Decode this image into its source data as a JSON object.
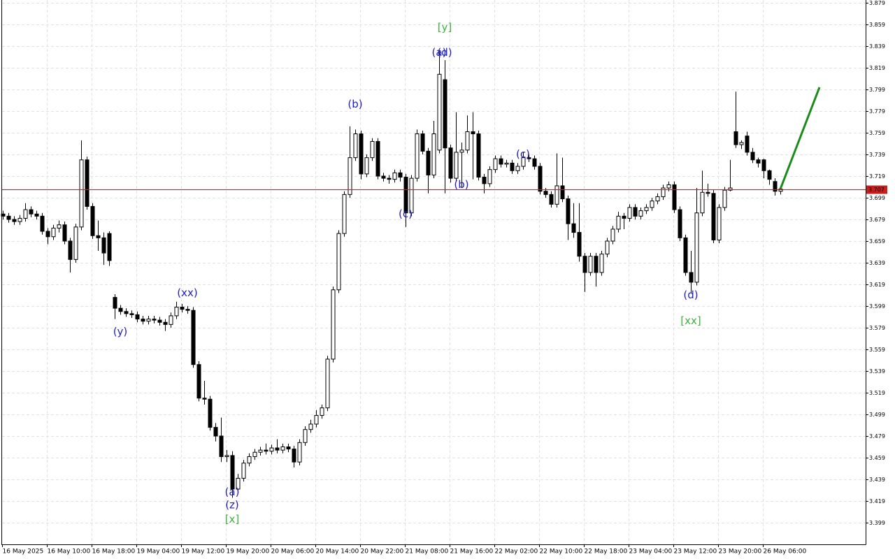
{
  "chart_data": {
    "type": "candlestick",
    "categories": [
      "16 May 2025",
      null,
      null,
      null,
      null,
      null,
      null,
      null,
      "16 May 10:00",
      null,
      null,
      null,
      null,
      null,
      null,
      null,
      "16 May 18:00",
      null,
      null,
      null,
      null,
      null,
      null,
      null,
      "19 May 04:00",
      null,
      null,
      null,
      null,
      null,
      null,
      null,
      "19 May 12:00",
      null,
      null,
      null,
      null,
      null,
      null,
      null,
      "19 May 20:00",
      null,
      null,
      null,
      null,
      null,
      null,
      null,
      "20 May 06:00",
      null,
      null,
      null,
      null,
      null,
      null,
      null,
      "20 May 14:00",
      null,
      null,
      null,
      null,
      null,
      null,
      null,
      "20 May 22:00",
      null,
      null,
      null,
      null,
      null,
      null,
      null,
      "21 May 08:00",
      null,
      null,
      null,
      null,
      null,
      null,
      null,
      "21 May 16:00",
      null,
      null,
      null,
      null,
      null,
      null,
      null,
      "22 May 02:00",
      null,
      null,
      null,
      null,
      null,
      null,
      null,
      "22 May 10:00",
      null,
      null,
      null,
      null,
      null,
      null,
      null,
      "22 May 18:00",
      null,
      null,
      null,
      null,
      null,
      null,
      null,
      "23 May 04:00",
      null,
      null,
      null,
      null,
      null,
      null,
      null,
      "23 May 12:00",
      null,
      null,
      null,
      null,
      null,
      null,
      null,
      "23 May 20:00",
      null,
      null,
      null,
      null,
      null,
      null,
      null,
      "26 May 06:00",
      null,
      null,
      null
    ],
    "open": [
      3.684,
      3.682,
      3.679,
      3.677,
      3.68,
      3.688,
      3.684,
      3.682,
      3.668,
      3.663,
      3.671,
      3.674,
      3.659,
      3.642,
      3.672,
      3.734,
      3.691,
      3.664,
      3.662,
      3.666,
      3.607,
      3.597,
      3.594,
      3.592,
      3.591,
      3.587,
      3.585,
      3.587,
      3.586,
      3.584,
      3.582,
      3.59,
      3.598,
      3.596,
      3.595,
      3.545,
      3.514,
      3.513,
      3.487,
      3.479,
      3.46,
      3.461,
      3.43,
      3.44,
      3.454,
      3.46,
      3.464,
      3.466,
      3.465,
      3.468,
      3.466,
      3.469,
      3.467,
      3.455,
      3.473,
      3.485,
      3.49,
      3.498,
      3.505,
      3.55,
      3.614,
      3.666,
      3.702,
      3.736,
      3.758,
      3.721,
      3.736,
      3.751,
      3.719,
      3.717,
      3.716,
      3.722,
      3.718,
      3.685,
      3.717,
      3.758,
      3.742,
      3.72,
      3.743,
      3.808,
      3.745,
      3.717,
      3.741,
      3.743,
      3.76,
      3.758,
      3.718,
      3.712,
      3.725,
      3.735,
      3.73,
      3.731,
      3.724,
      3.728,
      3.736,
      3.735,
      3.728,
      3.705,
      3.702,
      3.693,
      3.71,
      3.698,
      3.675,
      3.667,
      3.645,
      3.63,
      3.645,
      3.63,
      3.647,
      3.659,
      3.67,
      3.682,
      3.68,
      3.69,
      3.682,
      3.687,
      3.69,
      3.696,
      3.7,
      3.708,
      3.711,
      3.688,
      3.662,
      3.63,
      3.621,
      3.685,
      3.704,
      3.703,
      3.66,
      3.69,
      3.706,
      3.76,
      3.748,
      3.756,
      3.741,
      3.734,
      3.734,
      3.724,
      3.714,
      3.705
    ],
    "high": [
      3.687,
      3.685,
      3.682,
      3.683,
      3.694,
      3.691,
      3.687,
      3.685,
      3.671,
      3.674,
      3.678,
      3.677,
      3.662,
      3.675,
      3.752,
      3.737,
      3.694,
      3.678,
      3.667,
      3.668,
      3.61,
      3.6,
      3.597,
      3.595,
      3.594,
      3.59,
      3.59,
      3.59,
      3.589,
      3.587,
      3.593,
      3.603,
      3.601,
      3.599,
      3.598,
      3.548,
      3.53,
      3.516,
      3.491,
      3.496,
      3.466,
      3.465,
      3.444,
      3.457,
      3.463,
      3.467,
      3.469,
      3.472,
      3.471,
      3.476,
      3.472,
      3.472,
      3.47,
      3.476,
      3.488,
      3.494,
      3.503,
      3.508,
      3.553,
      3.617,
      3.669,
      3.705,
      3.765,
      3.762,
      3.761,
      3.739,
      3.754,
      3.754,
      3.722,
      3.72,
      3.725,
      3.725,
      3.721,
      3.72,
      3.762,
      3.761,
      3.745,
      3.77,
      3.835,
      3.826,
      3.748,
      3.778,
      3.75,
      3.775,
      3.778,
      3.761,
      3.721,
      3.728,
      3.738,
      3.738,
      3.734,
      3.734,
      3.731,
      3.741,
      3.739,
      3.738,
      3.731,
      3.708,
      3.705,
      3.74,
      3.736,
      3.701,
      3.694,
      3.694,
      3.648,
      3.648,
      3.648,
      3.65,
      3.662,
      3.673,
      3.686,
      3.685,
      3.693,
      3.693,
      3.69,
      3.693,
      3.699,
      3.703,
      3.711,
      3.714,
      3.714,
      3.691,
      3.665,
      3.65,
      3.708,
      3.724,
      3.712,
      3.706,
      3.693,
      3.709,
      3.734,
      3.797,
      3.752,
      3.76,
      3.745,
      3.736,
      3.735,
      3.725,
      3.717,
      3.709
    ],
    "low": [
      3.679,
      3.676,
      3.674,
      3.674,
      3.677,
      3.681,
      3.679,
      3.665,
      3.656,
      3.66,
      3.667,
      3.656,
      3.63,
      3.639,
      3.669,
      3.688,
      3.661,
      3.65,
      3.637,
      3.636,
      3.587,
      3.591,
      3.589,
      3.588,
      3.584,
      3.582,
      3.582,
      3.583,
      3.581,
      3.576,
      3.579,
      3.587,
      3.593,
      3.592,
      3.542,
      3.511,
      3.508,
      3.484,
      3.474,
      3.455,
      3.455,
      3.422,
      3.427,
      3.437,
      3.451,
      3.457,
      3.461,
      3.462,
      3.462,
      3.463,
      3.463,
      3.464,
      3.45,
      3.452,
      3.47,
      3.482,
      3.487,
      3.495,
      3.502,
      3.547,
      3.611,
      3.663,
      3.699,
      3.733,
      3.716,
      3.718,
      3.733,
      3.716,
      3.714,
      3.712,
      3.713,
      3.714,
      3.672,
      3.682,
      3.714,
      3.739,
      3.703,
      3.717,
      3.74,
      3.703,
      3.713,
      3.714,
      3.708,
      3.74,
      3.716,
      3.715,
      3.703,
      3.709,
      3.722,
      3.727,
      3.727,
      3.721,
      3.721,
      3.725,
      3.732,
      3.725,
      3.702,
      3.699,
      3.69,
      3.69,
      3.695,
      3.66,
      3.662,
      3.64,
      3.612,
      3.627,
      3.617,
      3.627,
      3.644,
      3.656,
      3.667,
      3.67,
      3.677,
      3.679,
      3.679,
      3.684,
      3.687,
      3.693,
      3.697,
      3.705,
      3.685,
      3.659,
      3.627,
      3.611,
      3.618,
      3.682,
      3.7,
      3.657,
      3.657,
      3.687,
      3.705,
      3.745,
      3.744,
      3.738,
      3.731,
      3.727,
      3.717,
      3.711,
      3.701,
      3.702
    ],
    "close": [
      3.682,
      3.679,
      3.677,
      3.68,
      3.688,
      3.684,
      3.682,
      3.668,
      3.663,
      3.671,
      3.674,
      3.659,
      3.642,
      3.672,
      3.734,
      3.691,
      3.664,
      3.662,
      3.648,
      3.641,
      3.597,
      3.594,
      3.592,
      3.591,
      3.587,
      3.585,
      3.587,
      3.586,
      3.584,
      3.582,
      3.59,
      3.598,
      3.596,
      3.595,
      3.545,
      3.514,
      3.513,
      3.487,
      3.479,
      3.46,
      3.461,
      3.43,
      3.44,
      3.454,
      3.46,
      3.464,
      3.466,
      3.465,
      3.468,
      3.466,
      3.469,
      3.467,
      3.455,
      3.473,
      3.485,
      3.49,
      3.498,
      3.505,
      3.55,
      3.614,
      3.666,
      3.702,
      3.736,
      3.758,
      3.721,
      3.736,
      3.751,
      3.719,
      3.717,
      3.716,
      3.722,
      3.718,
      3.685,
      3.717,
      3.758,
      3.742,
      3.72,
      3.758,
      3.813,
      3.745,
      3.717,
      3.741,
      3.743,
      3.76,
      3.758,
      3.718,
      3.712,
      3.725,
      3.735,
      3.73,
      3.731,
      3.724,
      3.728,
      3.736,
      3.735,
      3.728,
      3.705,
      3.702,
      3.693,
      3.71,
      3.698,
      3.675,
      3.667,
      3.645,
      3.63,
      3.645,
      3.63,
      3.647,
      3.659,
      3.67,
      3.682,
      3.68,
      3.69,
      3.682,
      3.687,
      3.69,
      3.696,
      3.7,
      3.708,
      3.711,
      3.688,
      3.662,
      3.63,
      3.621,
      3.685,
      3.704,
      3.703,
      3.66,
      3.69,
      3.706,
      3.708,
      3.748,
      3.75,
      3.741,
      3.734,
      3.731,
      3.724,
      3.716,
      3.705,
      3.707
    ],
    "up_color": "#ffffff",
    "down_color": "#000000",
    "ylim": [
      3.379,
      3.879
    ],
    "yticks": [
      3.399,
      3.419,
      3.439,
      3.459,
      3.479,
      3.499,
      3.519,
      3.539,
      3.559,
      3.579,
      3.599,
      3.619,
      3.639,
      3.659,
      3.679,
      3.699,
      3.719,
      3.739,
      3.759,
      3.779,
      3.799,
      3.819,
      3.839,
      3.859,
      3.879
    ],
    "grid": true,
    "current_price": 3.707,
    "current_price_color": "#c81e1e",
    "annotations": [
      {
        "text": "(y)",
        "index": 21,
        "price": 3.575,
        "color": "#2020c8"
      },
      {
        "text": "(xx)",
        "index": 33,
        "price": 3.611,
        "color": "#2020c8"
      },
      {
        "text": "(a)",
        "index": 41,
        "price": 3.427,
        "color": "#2020c8"
      },
      {
        "text": "(z)",
        "index": 41,
        "price": 3.415,
        "color": "#2020c8"
      },
      {
        "text": "[x]",
        "index": 41,
        "price": 3.402,
        "color": "#3cb43c"
      },
      {
        "text": "(b)",
        "index": 63,
        "price": 3.785,
        "color": "#2020c8"
      },
      {
        "text": "(c)",
        "index": 72,
        "price": 3.684,
        "color": "#2020c8"
      },
      {
        "text": "(a)",
        "index": 78,
        "price": 3.833,
        "color": "#2020c8"
      },
      {
        "text": "(d)",
        "index": 79,
        "price": 3.833,
        "color": "#2020c8"
      },
      {
        "text": "[y]",
        "index": 79,
        "price": 3.856,
        "color": "#3cb43c"
      },
      {
        "text": "(b)",
        "index": 82,
        "price": 3.711,
        "color": "#2020c8"
      },
      {
        "text": "(c)",
        "index": 93,
        "price": 3.739,
        "color": "#2020c8"
      },
      {
        "text": "(d)",
        "index": 123,
        "price": 3.609,
        "color": "#2020c8"
      },
      {
        "text": "[xx]",
        "index": 123,
        "price": 3.585,
        "color": "#3cb43c"
      }
    ],
    "projection": {
      "index": [
        139,
        146
      ],
      "values": [
        3.707,
        3.801
      ],
      "color": "#1a8c1a"
    }
  }
}
